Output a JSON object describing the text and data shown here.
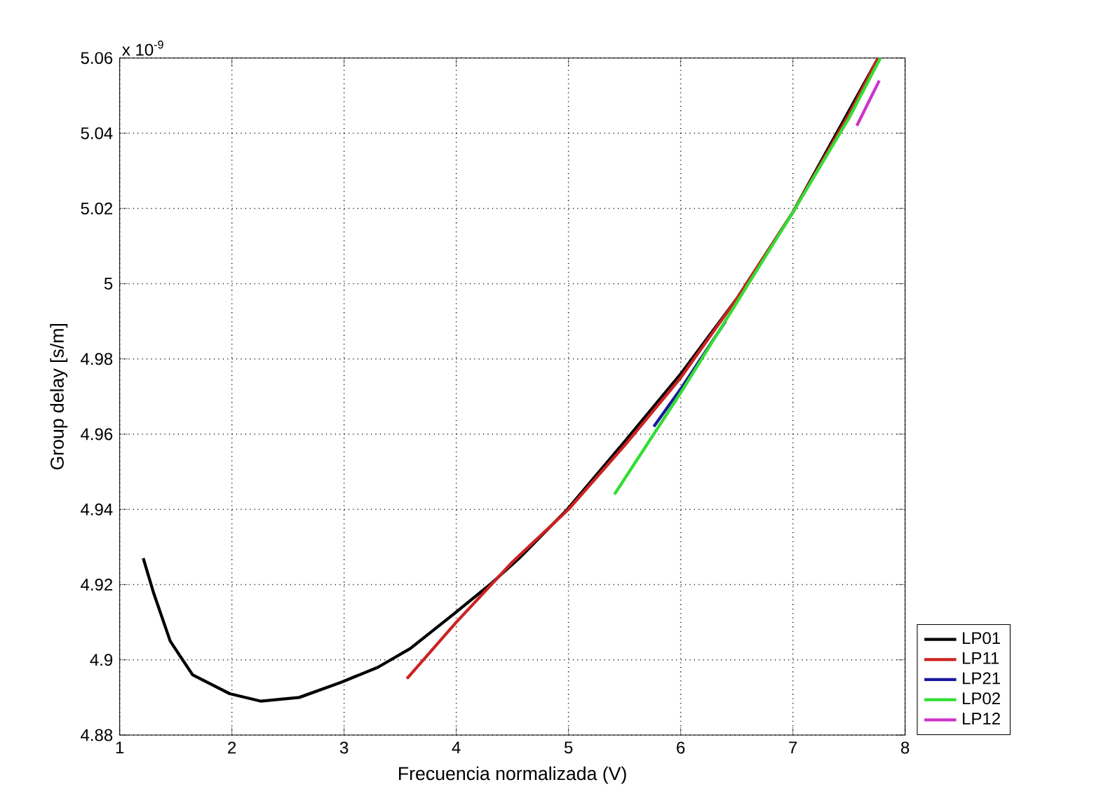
{
  "chart_data": {
    "type": "line",
    "xlabel": "Frecuencia normalizada (V)",
    "ylabel": "Group delay [s/m]",
    "annotations": [
      "x 10$^{-9}$"
    ],
    "xlim": [
      1,
      8
    ],
    "xticks": [
      1,
      2,
      3,
      4,
      5,
      6,
      7,
      8
    ],
    "ylim": [
      4.88,
      5.06
    ],
    "yticks": [
      4.88,
      4.9,
      4.92,
      4.94,
      4.96,
      4.98,
      5,
      5.02,
      5.04,
      5.06
    ],
    "grid": true,
    "legend": "bottom right",
    "line_style": "solid",
    "marker": "none",
    "series": [
      {
        "name": "LP01",
        "color": "#000000",
        "x": [
          1.21,
          1.3,
          1.45,
          1.65,
          1.98,
          2.26,
          2.6,
          2.97,
          3.3,
          3.59,
          3.97,
          4.3,
          4.56,
          4.99,
          5.5,
          6.0,
          6.5,
          7.0,
          7.76
        ],
        "values": [
          4.927,
          4.918,
          4.905,
          4.896,
          4.891,
          4.889,
          4.89,
          4.894,
          4.898,
          4.903,
          4.912,
          4.92,
          4.927,
          4.94,
          4.958,
          4.976,
          4.996,
          5.019,
          5.06
        ]
      },
      {
        "name": "LP11",
        "color": "#cc2222",
        "x": [
          3.56,
          4.0,
          4.5,
          5.0,
          5.5,
          6.0,
          6.5,
          7.0,
          7.5,
          7.76
        ],
        "values": [
          4.895,
          4.91,
          4.926,
          4.94,
          4.957,
          4.975,
          4.996,
          5.019,
          5.045,
          5.06
        ]
      },
      {
        "name": "LP21",
        "color": "#1a1a9e",
        "x": [
          5.76,
          6.0,
          6.2,
          6.4
        ],
        "values": [
          4.962,
          4.972,
          4.981,
          4.99
        ]
      },
      {
        "name": "LP02",
        "color": "#33dd33",
        "x": [
          5.41,
          5.76,
          6.0,
          6.5,
          7.0,
          7.5,
          7.78
        ],
        "values": [
          4.944,
          4.96,
          4.971,
          4.995,
          5.019,
          5.044,
          5.06
        ]
      },
      {
        "name": "LP12",
        "color": "#cc33cc",
        "x": [
          7.57,
          7.67,
          7.77
        ],
        "values": [
          5.042,
          5.048,
          5.054
        ]
      }
    ]
  }
}
